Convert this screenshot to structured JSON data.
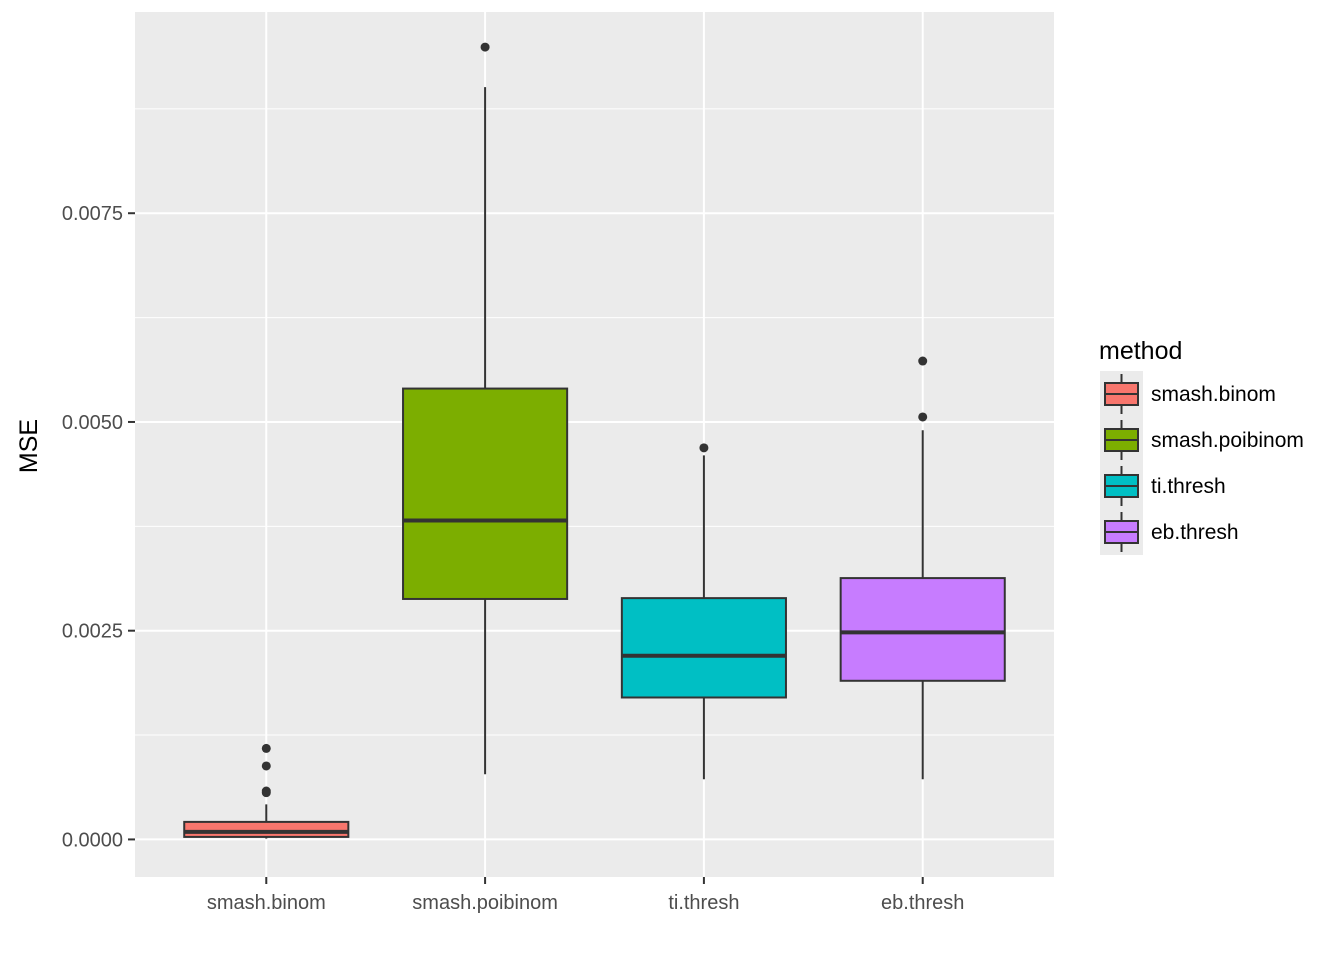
{
  "chart_data": {
    "type": "boxplot",
    "title": "",
    "xlabel": "",
    "ylabel": "MSE",
    "ylim": [
      -0.00045,
      0.00991
    ],
    "y_ticks": [
      0.0,
      0.0025,
      0.005,
      0.0075
    ],
    "y_tick_labels": [
      "0.0000",
      "0.0025",
      "0.0050",
      "0.0075"
    ],
    "grid": true,
    "legend": {
      "title": "method",
      "placement": "right"
    },
    "categories": [
      "smash.binom",
      "smash.poibinom",
      "ti.thresh",
      "eb.thresh"
    ],
    "series": [
      {
        "name": "smash.binom",
        "color": "#F8766D",
        "whisker_low": 1e-05,
        "q1": 3e-05,
        "median": 9e-05,
        "q3": 0.00021,
        "whisker_high": 0.00042,
        "outliers": [
          0.00058,
          0.00056,
          0.00088,
          0.00109
        ]
      },
      {
        "name": "smash.poibinom",
        "color": "#7CAE00",
        "whisker_low": 0.00078,
        "q1": 0.00288,
        "median": 0.00382,
        "q3": 0.0054,
        "whisker_high": 0.00901,
        "outliers": [
          0.00949
        ]
      },
      {
        "name": "ti.thresh",
        "color": "#00BFC4",
        "whisker_low": 0.00072,
        "q1": 0.0017,
        "median": 0.0022,
        "q3": 0.00289,
        "whisker_high": 0.0046,
        "outliers": [
          0.00469
        ]
      },
      {
        "name": "eb.thresh",
        "color": "#C77CFF",
        "whisker_low": 0.00072,
        "q1": 0.0019,
        "median": 0.00248,
        "q3": 0.00313,
        "whisker_high": 0.0049,
        "outliers": [
          0.00506,
          0.00573
        ]
      }
    ]
  }
}
